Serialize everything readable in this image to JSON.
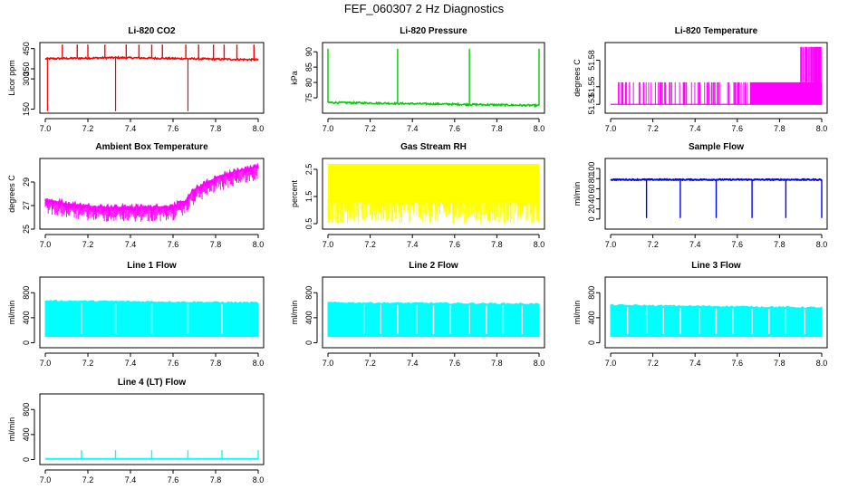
{
  "figure": {
    "title": "FEF_060307  2 Hz Diagnostics"
  },
  "colors": {
    "red": "#ff0000",
    "green": "#00cc00",
    "magenta": "#ff00ff",
    "yellow": "#ffff00",
    "blue": "#0000ff",
    "cyan": "#00ffff"
  },
  "chart_data": [
    {
      "type": "line",
      "title": "Li-820 CO2",
      "ylabel": "Licor ppm",
      "color": "#ff0000",
      "xlim": [
        7.0,
        8.0
      ],
      "xticks": [
        "7.0",
        "7.2",
        "7.4",
        "7.6",
        "7.8",
        "8.0"
      ],
      "ylim": [
        130,
        480
      ],
      "yticks": [
        150,
        300,
        350,
        450
      ],
      "series": [
        {
          "x": [
            7.0,
            7.01,
            7.33,
            7.67,
            8.0
          ],
          "y": [
            400,
            400,
            405,
            400,
            395
          ]
        }
      ],
      "annotations": {
        "baseline": 400,
        "spikes_up": [
          7.08,
          7.15,
          7.2,
          7.28,
          7.38,
          7.44,
          7.5,
          7.55,
          7.66,
          7.72,
          7.79,
          7.84,
          7.9,
          7.98
        ],
        "spikes_up_to": 470,
        "spikes_down": [
          7.01,
          7.33,
          7.67
        ],
        "spikes_down_to": 140
      }
    },
    {
      "type": "line",
      "title": "Li-820 Pressure",
      "ylabel": "kPa",
      "color": "#00cc00",
      "xlim": [
        7.0,
        8.0
      ],
      "xticks": [
        "7.0",
        "7.2",
        "7.4",
        "7.6",
        "7.8",
        "8.0"
      ],
      "ylim": [
        70,
        93
      ],
      "yticks": [
        75,
        80,
        85,
        90
      ],
      "series": [
        {
          "x": [
            7.0,
            8.0
          ],
          "y": [
            73.5,
            72.5
          ]
        }
      ],
      "annotations": {
        "spikes_up": [
          7.0,
          7.33,
          7.67,
          8.0
        ],
        "spikes_up_to": 91
      }
    },
    {
      "type": "line",
      "title": "Li-820 Temperature",
      "ylabel": "degrees C",
      "color": "#ff00ff",
      "xlim": [
        7.0,
        8.0
      ],
      "xticks": [
        "7.0",
        "7.2",
        "7.4",
        "7.6",
        "7.8",
        "8.0"
      ],
      "ylim": [
        51.52,
        51.6
      ],
      "yticks": [
        51.53,
        51.55,
        51.58
      ],
      "series": [
        {
          "x": [
            7.0,
            8.0
          ],
          "y": [
            51.53,
            51.53
          ]
        }
      ],
      "annotations": {
        "levels": [
          51.53,
          51.555,
          51.585
        ]
      }
    },
    {
      "type": "line",
      "title": "Ambient Box Temperature",
      "ylabel": "degrees C",
      "color": "#ff00ff",
      "xlim": [
        7.0,
        8.0
      ],
      "xticks": [
        "7.0",
        "7.2",
        "7.4",
        "7.6",
        "7.8",
        "8.0"
      ],
      "ylim": [
        25,
        31
      ],
      "yticks": [
        25,
        27,
        29
      ],
      "series": [
        {
          "x": [
            7.0,
            7.1,
            7.2,
            7.3,
            7.4,
            7.5,
            7.6,
            7.65,
            7.7,
            7.8,
            7.9,
            8.0
          ],
          "y": [
            27.5,
            27.1,
            26.9,
            26.8,
            26.8,
            26.8,
            26.9,
            27.2,
            28.3,
            29.3,
            29.9,
            30.3
          ]
        }
      ]
    },
    {
      "type": "line",
      "title": "Gas Stream RH",
      "ylabel": "percent",
      "color": "#ffff00",
      "xlim": [
        7.0,
        8.0
      ],
      "xticks": [
        "7.0",
        "7.2",
        "7.4",
        "7.6",
        "7.8",
        "8.0"
      ],
      "ylim": [
        0.3,
        2.9
      ],
      "yticks": [
        0.5,
        1.5,
        2.5
      ],
      "series": [
        {
          "x": [
            7.0,
            8.0
          ],
          "y": [
            2.6,
            2.6
          ]
        }
      ],
      "annotations": {
        "range": [
          0.5,
          2.7
        ]
      }
    },
    {
      "type": "line",
      "title": "Sample Flow",
      "ylabel": "ml/min",
      "color": "#0000ff",
      "xlim": [
        7.0,
        8.0
      ],
      "xticks": [
        "7.0",
        "7.2",
        "7.4",
        "7.6",
        "7.8",
        "8.0"
      ],
      "ylim": [
        -20,
        120
      ],
      "yticks": [
        0,
        20,
        40,
        60,
        80,
        100
      ],
      "series": [
        {
          "x": [
            7.0,
            8.0
          ],
          "y": [
            78,
            78
          ]
        }
      ],
      "annotations": {
        "drops": [
          7.17,
          7.33,
          7.5,
          7.67,
          7.83,
          8.0
        ],
        "drop_to": 2
      }
    },
    {
      "type": "area",
      "title": "Line 1 Flow",
      "ylabel": "ml/min",
      "color": "#00ffff",
      "xlim": [
        7.0,
        8.0
      ],
      "xticks": [
        "7.0",
        "7.2",
        "7.4",
        "7.6",
        "7.8",
        "8.0"
      ],
      "ylim": [
        -80,
        1050
      ],
      "yticks": [
        0,
        400,
        800
      ],
      "series": [
        {
          "x": [
            7.0,
            8.0
          ],
          "y": [
            670,
            640
          ],
          "y_low": 100
        }
      ],
      "annotations": {
        "gaps": [
          7.17,
          7.33,
          7.5,
          7.67,
          7.83
        ]
      }
    },
    {
      "type": "area",
      "title": "Line 2 Flow",
      "ylabel": "ml/min",
      "color": "#00ffff",
      "xlim": [
        7.0,
        8.0
      ],
      "xticks": [
        "7.0",
        "7.2",
        "7.4",
        "7.6",
        "7.8",
        "8.0"
      ],
      "ylim": [
        -80,
        1050
      ],
      "yticks": [
        0,
        400,
        800
      ],
      "series": [
        {
          "x": [
            7.0,
            8.0
          ],
          "y": [
            640,
            620
          ],
          "y_low": 100
        }
      ],
      "annotations": {
        "gaps": [
          7.17,
          7.25,
          7.33,
          7.42,
          7.5,
          7.58,
          7.67,
          7.75,
          7.83,
          7.92
        ]
      }
    },
    {
      "type": "area",
      "title": "Line 3 Flow",
      "ylabel": "ml/min",
      "color": "#00ffff",
      "xlim": [
        7.0,
        8.0
      ],
      "xticks": [
        "7.0",
        "7.2",
        "7.4",
        "7.6",
        "7.8",
        "8.0"
      ],
      "ylim": [
        -80,
        1050
      ],
      "yticks": [
        0,
        400,
        800
      ],
      "series": [
        {
          "x": [
            7.0,
            8.0
          ],
          "y": [
            600,
            560
          ],
          "y_low": 100
        }
      ],
      "annotations": {
        "gaps": [
          7.08,
          7.17,
          7.25,
          7.33,
          7.42,
          7.5,
          7.58,
          7.67,
          7.75,
          7.83,
          7.92
        ]
      }
    },
    {
      "type": "line",
      "title": "Line 4 (LT) Flow",
      "ylabel": "ml/min",
      "color": "#00ffff",
      "xlim": [
        7.0,
        8.0
      ],
      "xticks": [
        "7.0",
        "7.2",
        "7.4",
        "7.6",
        "7.8",
        "8.0"
      ],
      "ylim": [
        -80,
        1050
      ],
      "yticks": [
        0,
        400,
        800
      ],
      "series": [
        {
          "x": [
            7.0,
            8.0
          ],
          "y": [
            10,
            10
          ]
        }
      ],
      "annotations": {
        "spikes_up": [
          7.17,
          7.33,
          7.5,
          7.67,
          7.83,
          8.0
        ],
        "spikes_up_to": 150
      }
    }
  ]
}
